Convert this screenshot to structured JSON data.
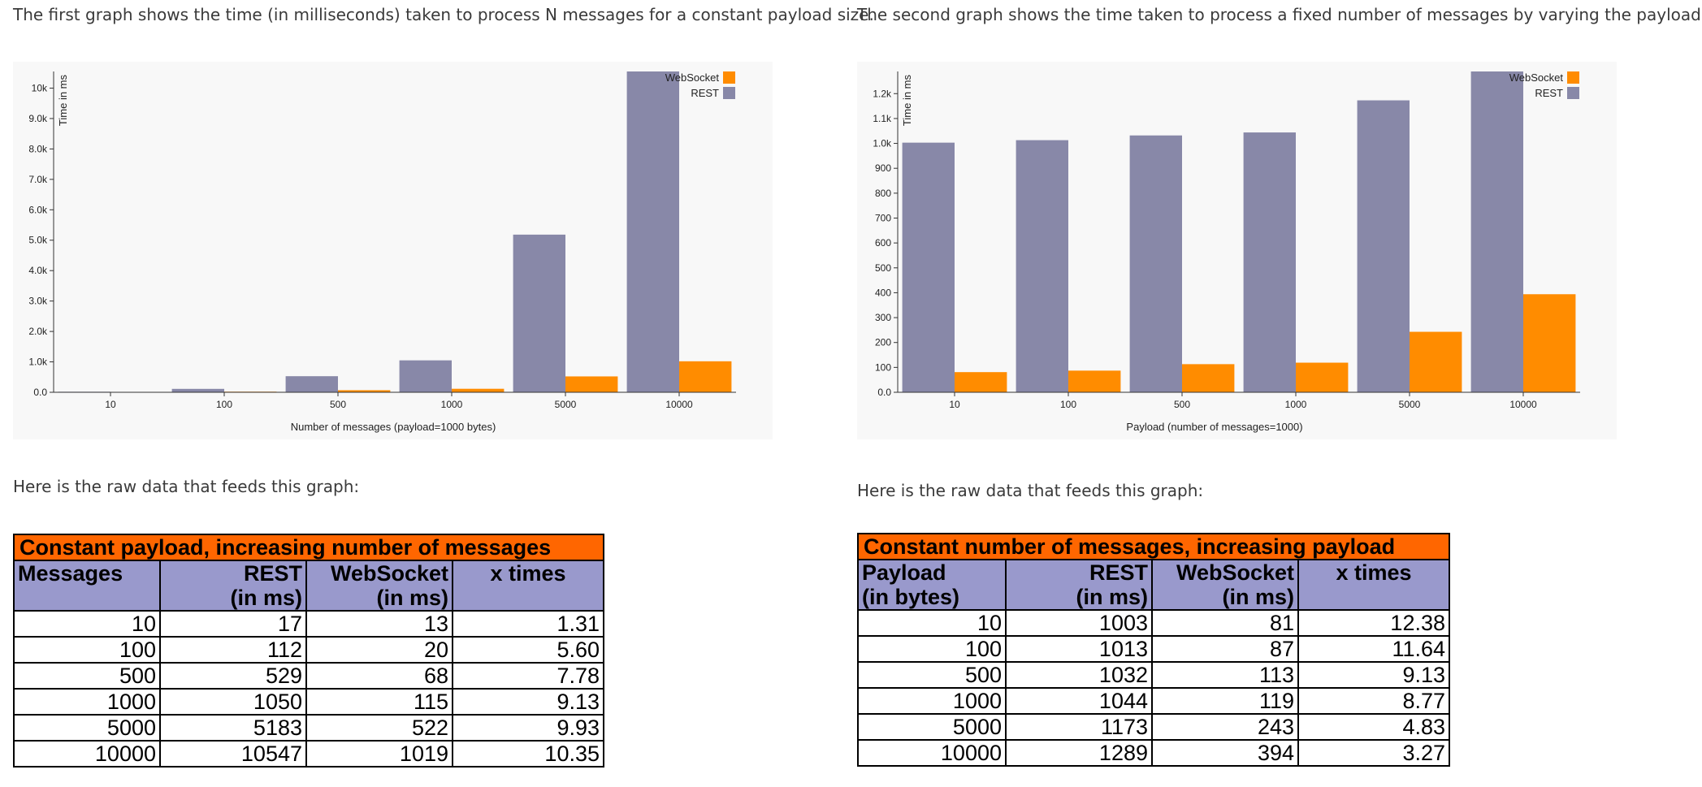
{
  "left": {
    "intro": "The first graph shows the time (in milliseconds) taken to process N messages for a constant payload size.",
    "raw_data_label": "Here is the raw data that feeds this graph:",
    "table": {
      "caption": "Constant payload, increasing number of messages",
      "headers": [
        {
          "line1": "Messages",
          "line2": ""
        },
        {
          "line1": "REST",
          "line2": "(in ms)"
        },
        {
          "line1": "WebSocket",
          "line2": "(in ms)"
        },
        {
          "line1": "x times",
          "line2": ""
        }
      ],
      "rows": [
        [
          "10",
          "17",
          "13",
          "1.31"
        ],
        [
          "100",
          "112",
          "20",
          "5.60"
        ],
        [
          "500",
          "529",
          "68",
          "7.78"
        ],
        [
          "1000",
          "1050",
          "115",
          "9.13"
        ],
        [
          "5000",
          "5183",
          "522",
          "9.93"
        ],
        [
          "10000",
          "10547",
          "1019",
          "10.35"
        ]
      ]
    }
  },
  "right": {
    "intro": "The second graph shows the time taken to process a fixed number of messages by varying the payload size.",
    "raw_data_label": "Here is the raw data that feeds this graph:",
    "table": {
      "caption": "Constant number of messages, increasing payload",
      "headers": [
        {
          "line1": "Payload",
          "line2": "(in bytes)"
        },
        {
          "line1": "REST",
          "line2": "(in ms)"
        },
        {
          "line1": "WebSocket",
          "line2": "(in ms)"
        },
        {
          "line1": "x times",
          "line2": ""
        }
      ],
      "rows": [
        [
          "10",
          "1003",
          "81",
          "12.38"
        ],
        [
          "100",
          "1013",
          "87",
          "11.64"
        ],
        [
          "500",
          "1032",
          "113",
          "9.13"
        ],
        [
          "1000",
          "1044",
          "119",
          "8.77"
        ],
        [
          "5000",
          "1173",
          "243",
          "4.83"
        ],
        [
          "10000",
          "1289",
          "394",
          "3.27"
        ]
      ]
    }
  },
  "chart_data": [
    {
      "type": "bar",
      "title": "",
      "xlabel": "Number of messages (payload=1000 bytes)",
      "ylabel": "Time in ms",
      "categories": [
        "10",
        "100",
        "500",
        "1000",
        "5000",
        "10000"
      ],
      "series": [
        {
          "name": "REST",
          "color": "#8888a8",
          "values": [
            17,
            112,
            529,
            1050,
            5183,
            10547
          ]
        },
        {
          "name": "WebSocket",
          "color": "#ff8c00",
          "values": [
            13,
            20,
            68,
            115,
            522,
            1019
          ]
        }
      ],
      "ylim": [
        0,
        10547
      ],
      "yticks": [
        0,
        1000,
        2000,
        3000,
        4000,
        5000,
        6000,
        7000,
        8000,
        9000,
        10000
      ],
      "ytick_labels": [
        "0.0",
        "1.0k",
        "2.0k",
        "3.0k",
        "4.0k",
        "5.0k",
        "6.0k",
        "7.0k",
        "8.0k",
        "9.0k",
        "10k"
      ],
      "legend": {
        "position": "top-right",
        "entries": [
          "WebSocket",
          "REST"
        ]
      },
      "grid": false
    },
    {
      "type": "bar",
      "title": "",
      "xlabel": "Payload (number of messages=1000)",
      "ylabel": "Time in ms",
      "categories": [
        "10",
        "100",
        "500",
        "1000",
        "5000",
        "10000"
      ],
      "series": [
        {
          "name": "REST",
          "color": "#8888a8",
          "values": [
            1003,
            1013,
            1032,
            1044,
            1173,
            1289
          ]
        },
        {
          "name": "WebSocket",
          "color": "#ff8c00",
          "values": [
            81,
            87,
            113,
            119,
            243,
            394
          ]
        }
      ],
      "ylim": [
        0,
        1289
      ],
      "yticks": [
        0,
        100,
        200,
        300,
        400,
        500,
        600,
        700,
        800,
        900,
        1000,
        1100,
        1200
      ],
      "ytick_labels": [
        "0.0",
        "100",
        "200",
        "300",
        "400",
        "500",
        "600",
        "700",
        "800",
        "900",
        "1.0k",
        "1.1k",
        "1.2k"
      ],
      "legend": {
        "position": "top-right",
        "entries": [
          "WebSocket",
          "REST"
        ]
      },
      "grid": false
    }
  ]
}
